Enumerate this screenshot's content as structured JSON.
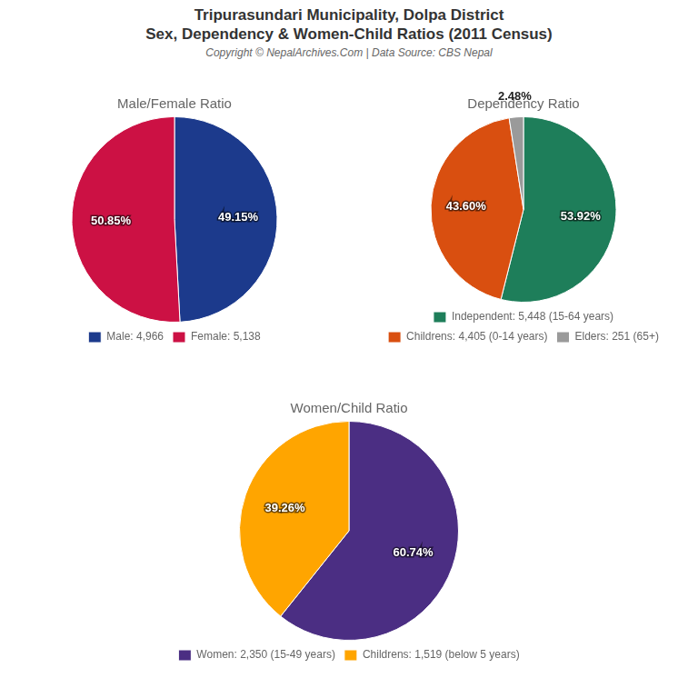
{
  "title": [
    "Tripurasundari Municipality, Dolpa District",
    "Sex, Dependency & Women-Child Ratios (2011 Census)"
  ],
  "subtitle": "Copyright © NepalArchives.Com | Data Source: CBS Nepal",
  "chart_data": [
    {
      "type": "pie",
      "title": "Male/Female Ratio",
      "categories": [
        "Male: 4,966",
        "Female: 5,138"
      ],
      "values": [
        49.15,
        50.85
      ],
      "value_labels": [
        "49.15%",
        "50.85%"
      ],
      "colors": [
        "#1C3A8C",
        "#CC1144"
      ],
      "data_labels": true,
      "legend": "bottom"
    },
    {
      "type": "pie",
      "title": "Dependency Ratio",
      "categories": [
        "Independent: 5,448 (15-64 years)",
        "Childrens: 4,405 (0-14 years)",
        "Elders: 251 (65+)"
      ],
      "values": [
        53.92,
        43.6,
        2.48
      ],
      "value_labels": [
        "53.92%",
        "43.60%",
        "2.48%"
      ],
      "colors": [
        "#1E7E5A",
        "#D94F10",
        "#9A9A9A"
      ],
      "data_labels": true,
      "legend": "bottom"
    },
    {
      "type": "pie",
      "title": "Women/Child Ratio",
      "categories": [
        "Women: 2,350 (15-49 years)",
        "Childrens: 1,519 (below 5 years)"
      ],
      "values": [
        60.74,
        39.26
      ],
      "value_labels": [
        "60.74%",
        "39.26%"
      ],
      "colors": [
        "#4B2E83",
        "#FFA500"
      ],
      "data_labels": true,
      "legend": "bottom"
    }
  ]
}
